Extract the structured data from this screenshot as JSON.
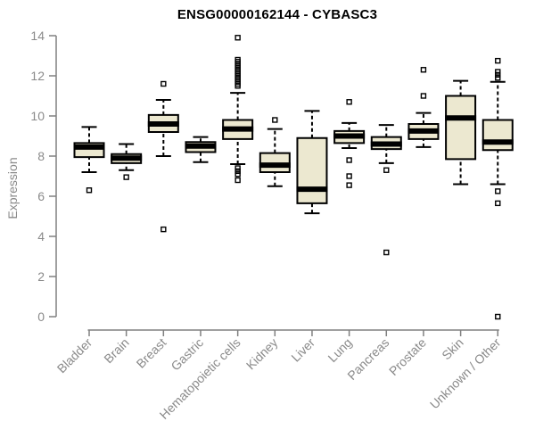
{
  "chart_data": {
    "type": "boxplot",
    "title": "ENSG00000162144 - CYBASC3",
    "ylabel": "Expression",
    "xlabel": "",
    "ylim": [
      0,
      14
    ],
    "yticks": [
      0,
      2,
      4,
      6,
      8,
      10,
      12,
      14
    ],
    "grid": false,
    "legend": "none",
    "colors": {
      "box_fill": "#ece8d0",
      "box_stroke": "#000000",
      "median": "#000000",
      "axis": "#808080",
      "tick_label": "#8a8a8a",
      "title": "#000000",
      "background": "#ffffff"
    },
    "categories": [
      "Bladder",
      "Brain",
      "Breast",
      "Gastric",
      "Hematopoietic cells",
      "Kidney",
      "Liver",
      "Lung",
      "Pancreas",
      "Prostate",
      "Skin",
      "Unknown / Other"
    ],
    "series": [
      {
        "category": "Bladder",
        "whisker_low": 7.2,
        "q1": 7.95,
        "median": 8.45,
        "q3": 8.65,
        "whisker_high": 9.45,
        "outliers": [
          6.3
        ]
      },
      {
        "category": "Brain",
        "whisker_low": 7.3,
        "q1": 7.65,
        "median": 7.9,
        "q3": 8.1,
        "whisker_high": 8.6,
        "outliers": [
          6.95
        ]
      },
      {
        "category": "Breast",
        "whisker_low": 8.0,
        "q1": 9.2,
        "median": 9.6,
        "q3": 10.05,
        "whisker_high": 10.8,
        "outliers": [
          11.6,
          4.35
        ]
      },
      {
        "category": "Gastric",
        "whisker_low": 7.7,
        "q1": 8.2,
        "median": 8.5,
        "q3": 8.7,
        "whisker_high": 8.95,
        "outliers": []
      },
      {
        "category": "Hematopoietic cells",
        "whisker_low": 7.6,
        "q1": 8.85,
        "median": 9.35,
        "q3": 9.8,
        "whisker_high": 11.15,
        "outliers": [
          13.9,
          12.8,
          12.7,
          12.6,
          12.5,
          12.4,
          12.3,
          12.2,
          12.1,
          12.0,
          11.9,
          11.8,
          11.7,
          11.6,
          11.5,
          7.4,
          7.25,
          7.1,
          6.8
        ]
      },
      {
        "category": "Kidney",
        "whisker_low": 6.5,
        "q1": 7.2,
        "median": 7.55,
        "q3": 8.15,
        "whisker_high": 9.35,
        "outliers": [
          9.8
        ]
      },
      {
        "category": "Liver",
        "whisker_low": 5.15,
        "q1": 5.65,
        "median": 6.35,
        "q3": 8.9,
        "whisker_high": 10.25,
        "outliers": []
      },
      {
        "category": "Lung",
        "whisker_low": 8.4,
        "q1": 8.65,
        "median": 9.0,
        "q3": 9.25,
        "whisker_high": 9.65,
        "outliers": [
          10.7,
          7.8,
          7.0,
          6.55
        ]
      },
      {
        "category": "Pancreas",
        "whisker_low": 7.65,
        "q1": 8.35,
        "median": 8.6,
        "q3": 8.95,
        "whisker_high": 9.55,
        "outliers": [
          7.3,
          3.2
        ]
      },
      {
        "category": "Prostate",
        "whisker_low": 8.45,
        "q1": 8.85,
        "median": 9.25,
        "q3": 9.6,
        "whisker_high": 10.15,
        "outliers": [
          12.3,
          11.0
        ]
      },
      {
        "category": "Skin",
        "whisker_low": 6.6,
        "q1": 7.85,
        "median": 9.9,
        "q3": 11.0,
        "whisker_high": 11.75,
        "outliers": []
      },
      {
        "category": "Unknown / Other",
        "whisker_low": 6.6,
        "q1": 8.3,
        "median": 8.7,
        "q3": 9.8,
        "whisker_high": 11.7,
        "outliers": [
          12.75,
          12.2,
          12.05,
          11.9,
          6.25,
          5.65,
          0.0
        ]
      }
    ]
  }
}
